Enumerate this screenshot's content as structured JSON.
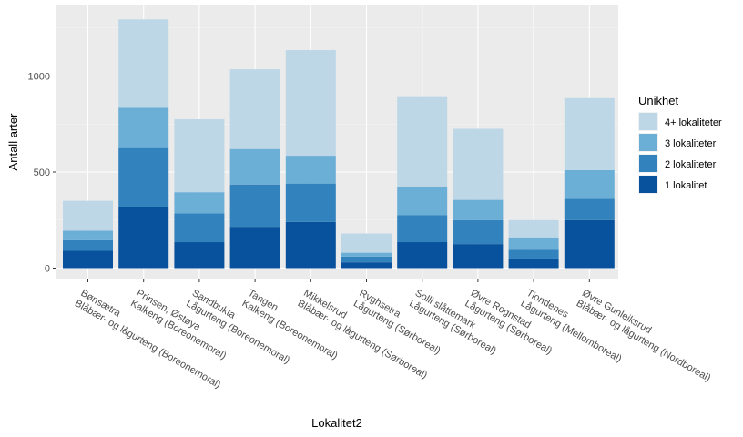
{
  "chart_data": {
    "type": "bar",
    "stacked": true,
    "xlabel": "Lokalitet2",
    "ylabel": "Antall arter",
    "ylim": [
      0,
      1300
    ],
    "yticks": [
      0,
      500,
      1000
    ],
    "grid": true,
    "legend": {
      "title": "Unikhet",
      "position": "right"
    },
    "categories": [
      [
        "Bønsætra",
        "Blåbær- og lågurteng (Boreonemoral)"
      ],
      [
        "Prinsen, Østøya",
        "Kalkeng (Boreonemoral)"
      ],
      [
        "Sandbukta",
        "Lågurteng (Boreonemoral)"
      ],
      [
        "Tangen",
        "Kalkeng (Boreonemoral)"
      ],
      [
        "Mikkelsrud",
        "Blåbær- og lågurteng (Sørboreal)"
      ],
      [
        "Ryghsetra",
        "Lågurteng (Sørboreal)"
      ],
      [
        "Solli slåttemark",
        "Lågurteng (Sørboreal)"
      ],
      [
        "Øvre Rognstad",
        "Lågurteng (Sørboreal)"
      ],
      [
        "Tiondenes",
        "Lågurteng (Mellomboreal)"
      ],
      [
        "Øvre Gunleiksrud",
        "Blåbær- og lågurteng (Nordboreal)"
      ]
    ],
    "series": [
      {
        "name": "1 lokalitet",
        "color": "#08519c",
        "values": [
          90,
          320,
          135,
          215,
          240,
          30,
          135,
          125,
          50,
          250
        ]
      },
      {
        "name": "2 lokaliteter",
        "color": "#3182bd",
        "values": [
          55,
          305,
          150,
          220,
          200,
          30,
          140,
          125,
          45,
          110
        ]
      },
      {
        "name": "3 lokaliteter",
        "color": "#6baed6",
        "values": [
          50,
          210,
          110,
          185,
          145,
          20,
          150,
          105,
          65,
          150
        ]
      },
      {
        "name": "4+ lokaliteter",
        "color": "#bdd7e7",
        "values": [
          155,
          460,
          380,
          415,
          550,
          100,
          470,
          370,
          90,
          375
        ]
      }
    ]
  }
}
